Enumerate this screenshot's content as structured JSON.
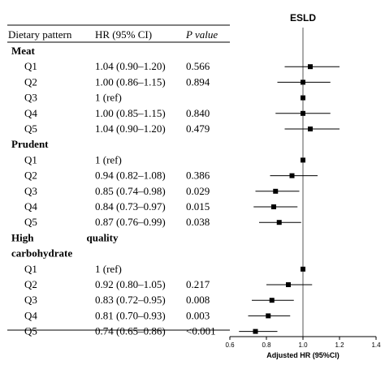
{
  "chart_data": {
    "type": "forest",
    "title": "ESLD",
    "xlabel": "Adjusted HR (95%CI)",
    "xlim": [
      0.6,
      1.4
    ],
    "xticks": [
      "0.6",
      "0.8",
      "1.0",
      "1.2",
      "1.4"
    ],
    "reference_line": 1.0,
    "columns": {
      "pattern": "Dietary pattern",
      "hr": "HR (95% CI)",
      "p": "P value"
    },
    "groups": [
      {
        "name": "Meat",
        "rows": [
          {
            "label": "Q1",
            "hr_text": "1.04 (0.90–1.20)",
            "p": "0.566",
            "hr": 1.04,
            "lo": 0.9,
            "hi": 1.2
          },
          {
            "label": "Q2",
            "hr_text": "1.00 (0.86–1.15)",
            "p": "0.894",
            "hr": 1.0,
            "lo": 0.86,
            "hi": 1.15
          },
          {
            "label": "Q3",
            "hr_text": "1 (ref)",
            "p": "",
            "hr": 1.0,
            "lo": 1.0,
            "hi": 1.0
          },
          {
            "label": "Q4",
            "hr_text": "1.00 (0.85–1.15)",
            "p": "0.840",
            "hr": 1.0,
            "lo": 0.85,
            "hi": 1.15
          },
          {
            "label": "Q5",
            "hr_text": "1.04 (0.90–1.20)",
            "p": "0.479",
            "hr": 1.04,
            "lo": 0.9,
            "hi": 1.2
          }
        ]
      },
      {
        "name": "Prudent",
        "rows": [
          {
            "label": "Q1",
            "hr_text": "1 (ref)",
            "p": "",
            "hr": 1.0,
            "lo": 1.0,
            "hi": 1.0
          },
          {
            "label": "Q2",
            "hr_text": "0.94 (0.82–1.08)",
            "p": "0.386",
            "hr": 0.94,
            "lo": 0.82,
            "hi": 1.08
          },
          {
            "label": "Q3",
            "hr_text": "0.85 (0.74–0.98)",
            "p": "0.029",
            "hr": 0.85,
            "lo": 0.74,
            "hi": 0.98
          },
          {
            "label": "Q4",
            "hr_text": "0.84 (0.73–0.97)",
            "p": "0.015",
            "hr": 0.84,
            "lo": 0.73,
            "hi": 0.97
          },
          {
            "label": "Q5",
            "hr_text": "0.87 (0.76–0.99)",
            "p": "0.038",
            "hr": 0.87,
            "lo": 0.76,
            "hi": 0.99
          }
        ]
      },
      {
        "name": "High quality carbohydrate",
        "name_parts": [
          "High",
          "quality",
          "carbohydrate"
        ],
        "rows": [
          {
            "label": "Q1",
            "hr_text": "1 (ref)",
            "p": "",
            "hr": 1.0,
            "lo": 1.0,
            "hi": 1.0
          },
          {
            "label": "Q2",
            "hr_text": "0.92 (0.80–1.05)",
            "p": "0.217",
            "hr": 0.92,
            "lo": 0.8,
            "hi": 1.05
          },
          {
            "label": "Q3",
            "hr_text": "0.83 (0.72–0.95)",
            "p": "0.008",
            "hr": 0.83,
            "lo": 0.72,
            "hi": 0.95
          },
          {
            "label": "Q4",
            "hr_text": "0.81 (0.70–0.93)",
            "p": "0.003",
            "hr": 0.81,
            "lo": 0.7,
            "hi": 0.93
          },
          {
            "label": "Q5",
            "hr_text": "0.74 (0.65–0.86)",
            "p": "<0.001",
            "hr": 0.74,
            "lo": 0.65,
            "hi": 0.86
          }
        ]
      }
    ]
  }
}
